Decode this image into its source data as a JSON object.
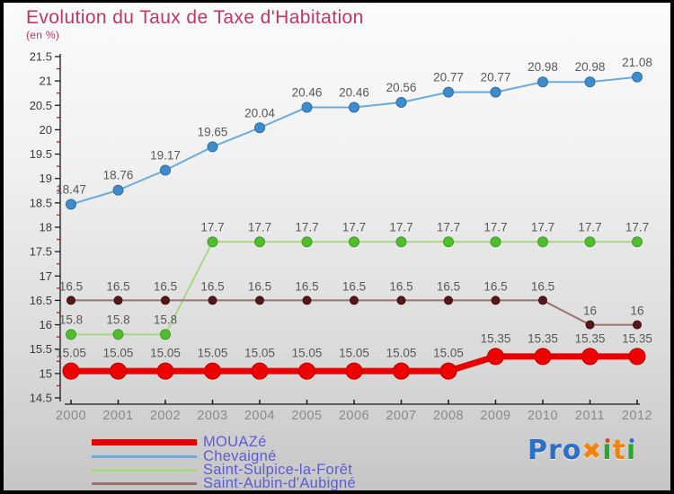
{
  "title": "Evolution du Taux de Taxe d'Habitation",
  "subtitle": "(en %)",
  "colors": {
    "title": "#c43568",
    "axis": "#1a1a1a",
    "minor_tick": "#cc1111",
    "y_label": "#3a3a3a",
    "x_label": "#8a8a8a",
    "data_label": "#595959",
    "legend_text": "#5c5cd6"
  },
  "chart_data": {
    "type": "line",
    "title": "Evolution du Taux de Taxe d'Habitation",
    "subtitle": "(en %)",
    "x": [
      2000,
      2001,
      2002,
      2003,
      2004,
      2005,
      2006,
      2007,
      2008,
      2009,
      2010,
      2011,
      2012
    ],
    "ylim": [
      14.5,
      21.5
    ],
    "y_major_step": 0.5,
    "grid": false,
    "legend_position": "bottom-left",
    "series": [
      {
        "name": "MOUAZé",
        "color": "#e60000",
        "marker_color": "#ee0000",
        "marker_stroke": "#b80000",
        "line_width": 7,
        "marker_radius": 9,
        "z": 4,
        "values": [
          15.05,
          15.05,
          15.05,
          15.05,
          15.05,
          15.05,
          15.05,
          15.05,
          15.05,
          15.35,
          15.35,
          15.35,
          15.35
        ]
      },
      {
        "name": "Chevaigné",
        "color": "#6aabdc",
        "marker_color": "#3f8ccc",
        "marker_stroke": "#2e6da8",
        "line_width": 2,
        "marker_radius": 5.5,
        "z": 1,
        "values": [
          18.47,
          18.76,
          19.17,
          19.65,
          20.04,
          20.46,
          20.46,
          20.56,
          20.77,
          20.77,
          20.98,
          20.98,
          21.08
        ]
      },
      {
        "name": "Saint-Sulpice-la-Forêt",
        "color": "#a6d884",
        "marker_color": "#4fbe2e",
        "marker_stroke": "#3f9e22",
        "line_width": 2,
        "marker_radius": 5.5,
        "z": 2,
        "values": [
          15.8,
          15.8,
          15.8,
          17.7,
          17.7,
          17.7,
          17.7,
          17.7,
          17.7,
          17.7,
          17.7,
          17.7,
          17.7
        ]
      },
      {
        "name": "Saint-Aubin-d'Aubigné",
        "color": "#9b7171",
        "marker_color": "#571717",
        "marker_stroke": "#3f0f0f",
        "line_width": 2,
        "marker_radius": 4.5,
        "z": 3,
        "values": [
          16.5,
          16.5,
          16.5,
          16.5,
          16.5,
          16.5,
          16.5,
          16.5,
          16.5,
          16.5,
          16.5,
          16,
          16
        ]
      }
    ]
  },
  "logo": {
    "text": "Proxiti",
    "letters": [
      {
        "ch": "P",
        "color": "#2b6fc6"
      },
      {
        "ch": "r",
        "color": "#2b6fc6"
      },
      {
        "ch": "o",
        "color": "#2b6fc6"
      },
      {
        "ch": "✖",
        "color": "#f5820a",
        "x_mark": true
      },
      {
        "ch": "i",
        "color": "#2ea52e",
        "dot_color": "#e04123"
      },
      {
        "ch": "t",
        "color": "#f5820a"
      },
      {
        "ch": "i",
        "color": "#2ea52e",
        "dot_color": "#2b6fc6"
      }
    ]
  }
}
